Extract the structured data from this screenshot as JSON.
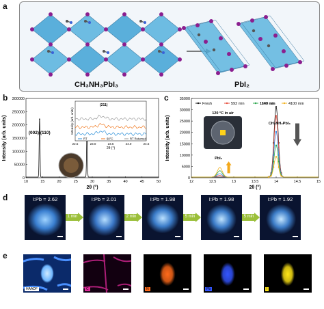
{
  "panels": {
    "a": {
      "label": "a",
      "left_title": "CH₃NH₃PbI₃",
      "right_title": "PbI₂"
    },
    "b": {
      "label": "b"
    },
    "c": {
      "label": "c"
    },
    "d": {
      "label": "d"
    },
    "e": {
      "label": "e"
    }
  },
  "colors": {
    "octahedron": "#4aa8d8",
    "iodine": "#8b1f8f",
    "carbon": "#555555",
    "nitrogen": "#3a62d8",
    "arrow_green": "#9bbf3a"
  },
  "panel_d": {
    "ratios": [
      "I:Pb = 2.62",
      "I:Pb = 2.01",
      "I:Pb = 1.98",
      "I:Pb = 1.98",
      "I:Pb = 1.92"
    ],
    "steps": [
      "1 min",
      "2 min",
      "5 min",
      "5 min"
    ]
  },
  "panel_e": {
    "maps": [
      {
        "tag": "HAADF",
        "color": "#ffffff"
      },
      {
        "tag": "C",
        "color": "#e0299a"
      },
      {
        "tag": "N",
        "color": "#ff6a1a"
      },
      {
        "tag": "Pb",
        "color": "#3355ff"
      },
      {
        "tag": "I",
        "color": "#ffe516"
      }
    ]
  },
  "chart_data": [
    {
      "panel": "b",
      "type": "line",
      "xlabel": "2θ (°)",
      "ylabel": "Intensity (arb. units)",
      "xlim": [
        10,
        50
      ],
      "ylim": [
        0,
        300000
      ],
      "xticks": [
        10,
        15,
        20,
        25,
        30,
        35,
        40,
        45,
        50
      ],
      "yticks": [
        0,
        50000,
        100000,
        150000,
        200000,
        250000,
        300000
      ],
      "yticklabels": [
        "0",
        "50000",
        "100000",
        "150000",
        "200000",
        "250000",
        "300000"
      ],
      "peaks": [
        {
          "x": 14.1,
          "y": 222000
        },
        {
          "x": 28.4,
          "y": 190000
        }
      ],
      "annotation": "(002)/(110)",
      "inset": {
        "xlabel": "2θ (°)",
        "ylabel": "Intensity (arb. units)",
        "annotation": "(211)",
        "xticks": [
          "22.5",
          "23.0",
          "23.5",
          "24.0",
          "24.5"
        ],
        "legend": [
          "RT",
          "60°C",
          "RT Returned"
        ],
        "series": [
          {
            "name": "RT",
            "color": "#2b8fd8"
          },
          {
            "name": "60°C",
            "color": "#f07a22"
          },
          {
            "name": "RT Returned",
            "color": "#9a9a9a"
          }
        ]
      }
    },
    {
      "panel": "c",
      "type": "line",
      "xlabel": "2θ (°)",
      "ylabel": "Intensity (arb. units)",
      "xlim": [
        12,
        15
      ],
      "ylim": [
        0,
        35000
      ],
      "xticks": [
        "12",
        "12.5",
        "13",
        "13.5",
        "14",
        "14.5",
        "15"
      ],
      "yticks": [
        0,
        5000,
        10000,
        15000,
        20000,
        25000,
        30000,
        35000
      ],
      "annotations": [
        "120 °C in air",
        "CH₃NH₃PbI₃",
        "PbI₂"
      ],
      "series": [
        {
          "name": "Fresh",
          "color": "#111111",
          "peak_14": 31000,
          "peak_12_7": 0
        },
        {
          "name": "592 min",
          "color": "#e64c3c",
          "peak_14": 27000,
          "peak_12_7": 700
        },
        {
          "name": "1160 min",
          "color": "#2b7fd8",
          "peak_14": 20000,
          "peak_12_7": 1500
        },
        {
          "name": "1640 min",
          "color": "#2ea84a",
          "peak_14": 14000,
          "peak_12_7": 2800
        },
        {
          "name": "4100 min",
          "color": "#f3b01a",
          "peak_14": 9000,
          "peak_12_7": 4200
        }
      ]
    }
  ]
}
